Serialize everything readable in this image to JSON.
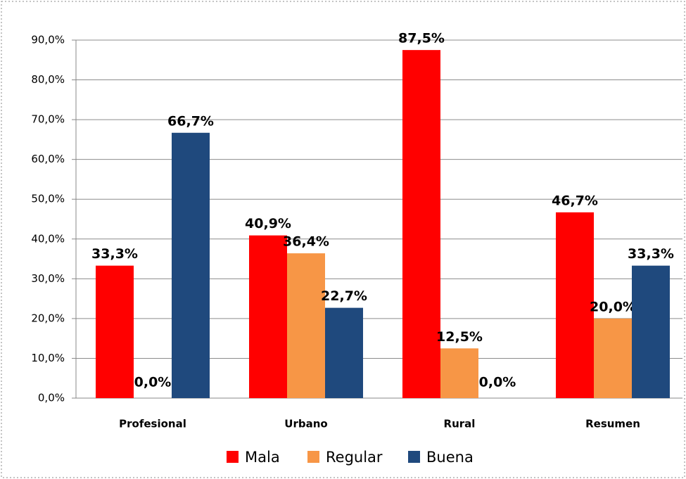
{
  "chart_data": {
    "type": "bar",
    "categories": [
      "Profesional",
      "Urbano",
      "Rural",
      "Resumen"
    ],
    "series": [
      {
        "name": "Mala",
        "color": "#ff0000",
        "values": [
          33.3,
          40.9,
          87.5,
          46.7
        ],
        "value_labels": [
          "33,3%",
          "40,9%",
          "87,5%",
          "46,7%"
        ]
      },
      {
        "name": "Regular",
        "color": "#f79646",
        "values": [
          0,
          36.4,
          12.5,
          20.0
        ],
        "value_labels": [
          "0,0%",
          "36,4%",
          "12,5%",
          "20,0%"
        ]
      },
      {
        "name": "Buena",
        "color": "#1f497d",
        "values": [
          66.7,
          22.7,
          0,
          33.3
        ],
        "value_labels": [
          "66,7%",
          "22,7%",
          "0,0%",
          "33,3%"
        ]
      }
    ],
    "ylim": [
      0,
      90
    ],
    "yticks": [
      {
        "value": 0,
        "label": "0,0%"
      },
      {
        "value": 10,
        "label": "10,0%"
      },
      {
        "value": 20,
        "label": "20,0%"
      },
      {
        "value": 30,
        "label": "30,0%"
      },
      {
        "value": 40,
        "label": "40,0%"
      },
      {
        "value": 50,
        "label": "50,0%"
      },
      {
        "value": 60,
        "label": "60,0%"
      },
      {
        "value": 70,
        "label": "70,0%"
      },
      {
        "value": 80,
        "label": "80,0%"
      },
      {
        "value": 90,
        "label": "90,0%"
      }
    ],
    "grid": true,
    "legend": "bottom"
  }
}
